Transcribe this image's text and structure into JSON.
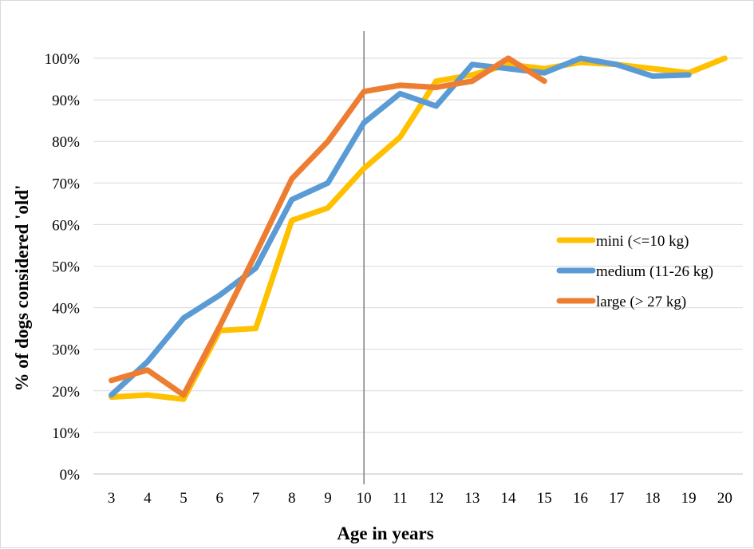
{
  "chart_data": {
    "type": "line",
    "title": "",
    "xlabel": "Age in years",
    "ylabel": "% of dogs considered 'old'",
    "ylim": [
      0,
      1
    ],
    "y_ticks": [
      "0%",
      "10%",
      "20%",
      "30%",
      "40%",
      "50%",
      "60%",
      "70%",
      "80%",
      "90%",
      "100%"
    ],
    "categories": [
      "3",
      "4",
      "5",
      "6",
      "7",
      "8",
      "9",
      "10",
      "11",
      "12",
      "13",
      "14",
      "15",
      "16",
      "17",
      "18",
      "19",
      "20"
    ],
    "grid": true,
    "legend_position": "right",
    "reference_line": "10",
    "series": [
      {
        "name": "mini (<=10 kg)",
        "color": "#FFC000",
        "values": [
          0.185,
          0.19,
          0.18,
          0.345,
          0.35,
          0.61,
          0.64,
          0.735,
          0.81,
          0.945,
          0.96,
          0.985,
          0.975,
          0.99,
          0.985,
          0.975,
          0.965,
          1.0
        ]
      },
      {
        "name": "medium (11-26 kg)",
        "color": "#5B9BD5",
        "values": [
          0.19,
          0.27,
          0.375,
          0.43,
          0.495,
          0.66,
          0.7,
          0.845,
          0.915,
          0.885,
          0.985,
          0.975,
          0.965,
          1.0,
          0.985,
          0.957,
          0.96,
          null
        ]
      },
      {
        "name": "large (> 27 kg)",
        "color": "#ED7D31",
        "values": [
          0.225,
          0.25,
          0.19,
          0.355,
          0.53,
          0.71,
          0.8,
          0.92,
          0.935,
          0.93,
          0.945,
          1.0,
          0.945,
          null,
          null,
          null,
          null,
          null
        ]
      }
    ]
  }
}
